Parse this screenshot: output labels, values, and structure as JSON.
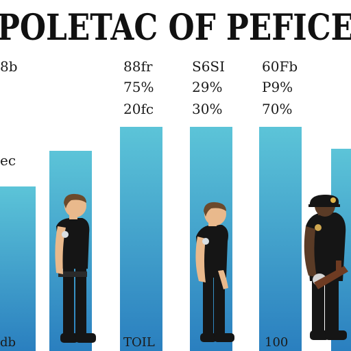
{
  "chart_data": {
    "type": "bar",
    "title": "POLETAC OF PEFICE",
    "categories": [
      "",
      "",
      "",
      "",
      "",
      ""
    ],
    "values": [
      240,
      292,
      327,
      327,
      327,
      295
    ],
    "ylim": [
      0,
      400
    ],
    "grid": false,
    "legend": "none",
    "colors": {
      "bar_top": "#5cc4d8",
      "bar_bottom": "#2a7fbf",
      "uniform": "#151515",
      "skin_light": "#e9b98c",
      "skin_dark": "#5a3b26",
      "hair": "#6b4a2c",
      "baton": "#6e3b22"
    },
    "row_labels": [
      [
        "8b",
        "88fr",
        "S6SI",
        "60Fb"
      ],
      [
        "",
        "75%",
        "29%",
        "P9%"
      ],
      [
        "",
        "20fc",
        "30%",
        "70%"
      ]
    ],
    "side_label": "ec",
    "bottom_labels": [
      "db",
      "TOIL",
      "100"
    ]
  }
}
